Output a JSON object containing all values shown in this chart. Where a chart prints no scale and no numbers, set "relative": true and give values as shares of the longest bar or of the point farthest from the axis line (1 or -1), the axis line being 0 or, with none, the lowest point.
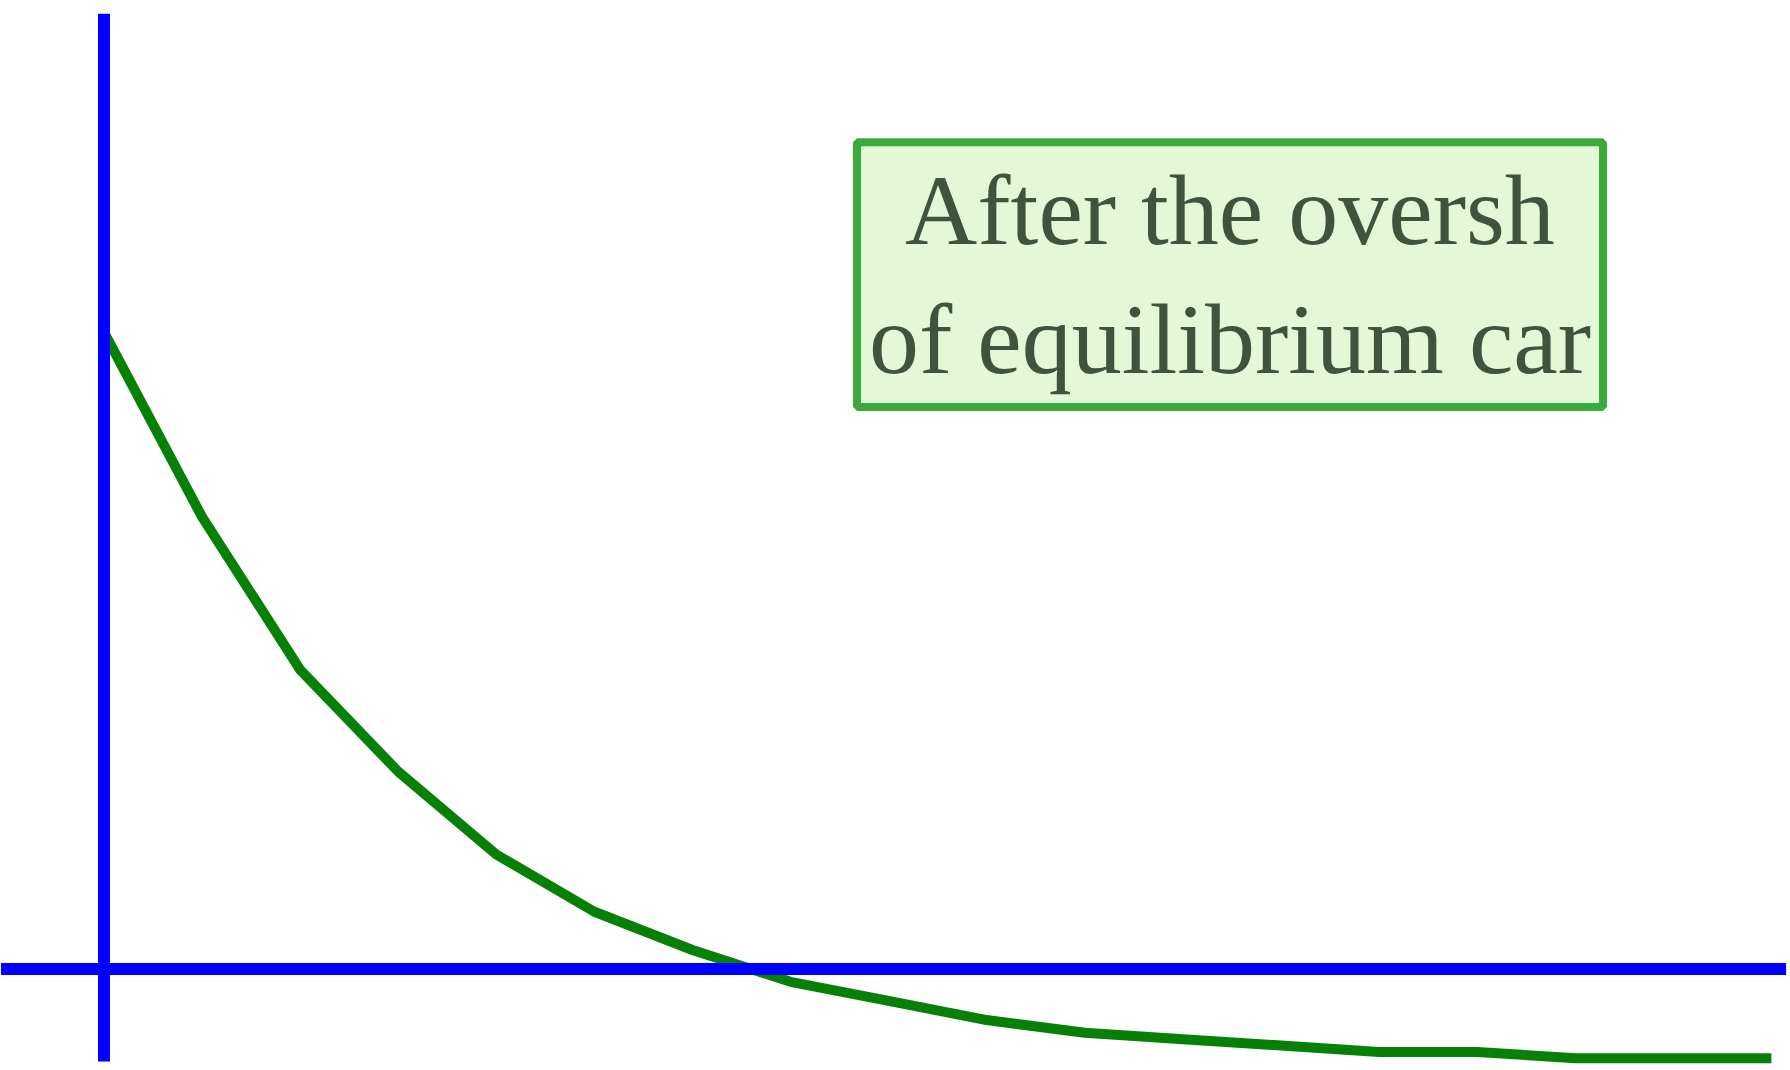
{
  "chart_data": {
    "type": "line",
    "relative": true,
    "categories": [
      null,
      null,
      null,
      null,
      null,
      null,
      null,
      null,
      null,
      null,
      null,
      null,
      null,
      null,
      null,
      null,
      null,
      null
    ],
    "series": [
      {
        "color": "#068006",
        "values": [
          1.0,
          0.71,
          0.47,
          0.31,
          0.18,
          0.09,
          0.03,
          -0.02,
          -0.05,
          -0.08,
          -0.1,
          -0.11,
          -0.12,
          -0.13,
          -0.13,
          -0.14,
          -0.14,
          -0.14
        ]
      }
    ],
    "ref_lines": [
      {
        "axis": "y",
        "value": 0,
        "color": "#0000ff"
      }
    ],
    "annotations": [
      "After the oversh\nof equilibrium car"
    ]
  }
}
